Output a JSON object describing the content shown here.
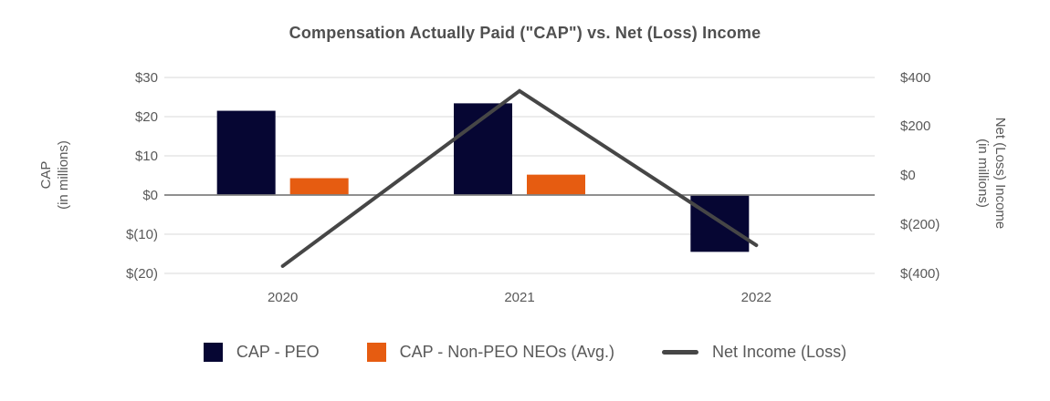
{
  "chart_data": {
    "type": "combo-bar-line",
    "title": "Compensation Actually Paid (\"CAP\") vs. Net (Loss) Income",
    "categories": [
      "2020",
      "2021",
      "2022"
    ],
    "series": [
      {
        "name": "CAP - PEO",
        "type": "bar",
        "axis": "left",
        "color": "#060633",
        "values": [
          21.5,
          23.4,
          -14.5
        ]
      },
      {
        "name": "CAP - Non-PEO NEOs (Avg.)",
        "type": "bar",
        "axis": "left",
        "color": "#E65C11",
        "values": [
          4.3,
          5.2,
          0
        ]
      },
      {
        "name": "Net Income (Loss)",
        "type": "line",
        "axis": "right",
        "color": "#464646",
        "values": [
          -370,
          345,
          -285
        ]
      }
    ],
    "left_axis": {
      "title_line1": "CAP",
      "title_line2": "(in millions)",
      "min": -20,
      "max": 30,
      "ticks": [
        30,
        20,
        10,
        0,
        -10,
        -20
      ],
      "tick_labels": [
        "$30",
        "$20",
        "$10",
        "$0",
        "$(10)",
        "$(20)"
      ]
    },
    "right_axis": {
      "title_line1": "Net (Loss) Income",
      "title_line2": "(in millions)",
      "min": -400,
      "max": 400,
      "ticks": [
        400,
        200,
        0,
        -200,
        -400
      ],
      "tick_labels": [
        "$400",
        "$200",
        "$0",
        "$(200)",
        "$(400)"
      ]
    },
    "grid": true,
    "legend_position": "bottom",
    "colors": {
      "gridline": "#d9d9d9",
      "zero_line": "#808080",
      "text": "#595959",
      "background": "#ffffff"
    }
  }
}
